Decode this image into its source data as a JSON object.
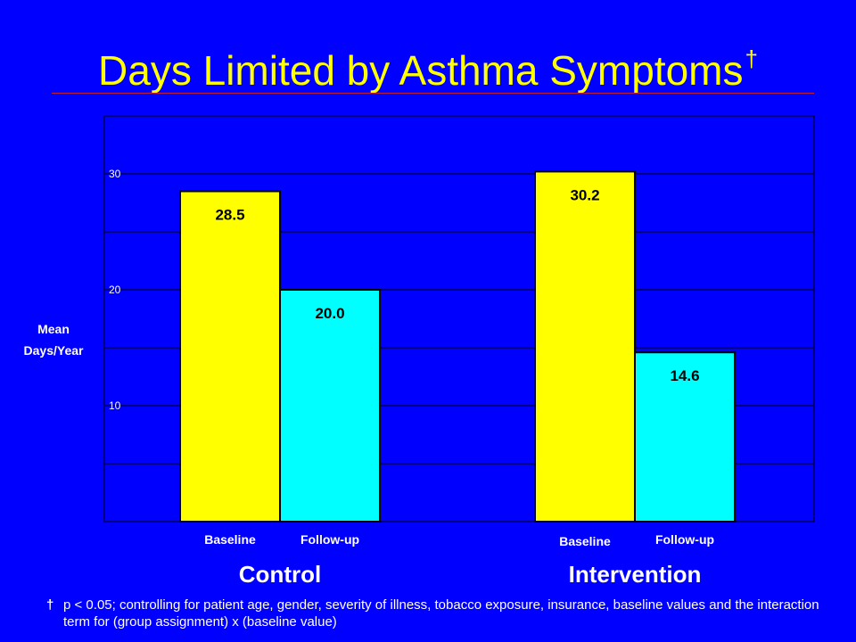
{
  "title": "Days Limited by Asthma Symptoms",
  "title_mark": "†",
  "footnote": {
    "mark": "†",
    "text": "p < 0.05; controlling for patient age, gender, severity of illness, tobacco exposure, insurance, baseline values and the interaction term for (group assignment) x (baseline value)"
  },
  "colors": {
    "background": "#0000ff",
    "title": "#ffff00",
    "baseline_bar": "#ffff00",
    "followup_bar": "#00ffff",
    "text": "#ffffff",
    "grid": "#000000"
  },
  "chart_data": {
    "type": "bar",
    "ylabel": "Mean Days/Year",
    "ylim": [
      0,
      35
    ],
    "yticks": [
      10,
      20,
      30
    ],
    "grid": true,
    "legend": "none",
    "groups": [
      {
        "name": "Control",
        "bars": [
          {
            "label": "Baseline",
            "value": 28.5,
            "value_label": "28.5"
          },
          {
            "label": "Follow-up",
            "value": 20.0,
            "value_label": "20.0"
          }
        ]
      },
      {
        "name": "Intervention",
        "bars": [
          {
            "label": "Baseline",
            "value": 30.2,
            "value_label": "30.2"
          },
          {
            "label": "Follow-up",
            "value": 14.6,
            "value_label": "14.6"
          }
        ]
      }
    ]
  }
}
